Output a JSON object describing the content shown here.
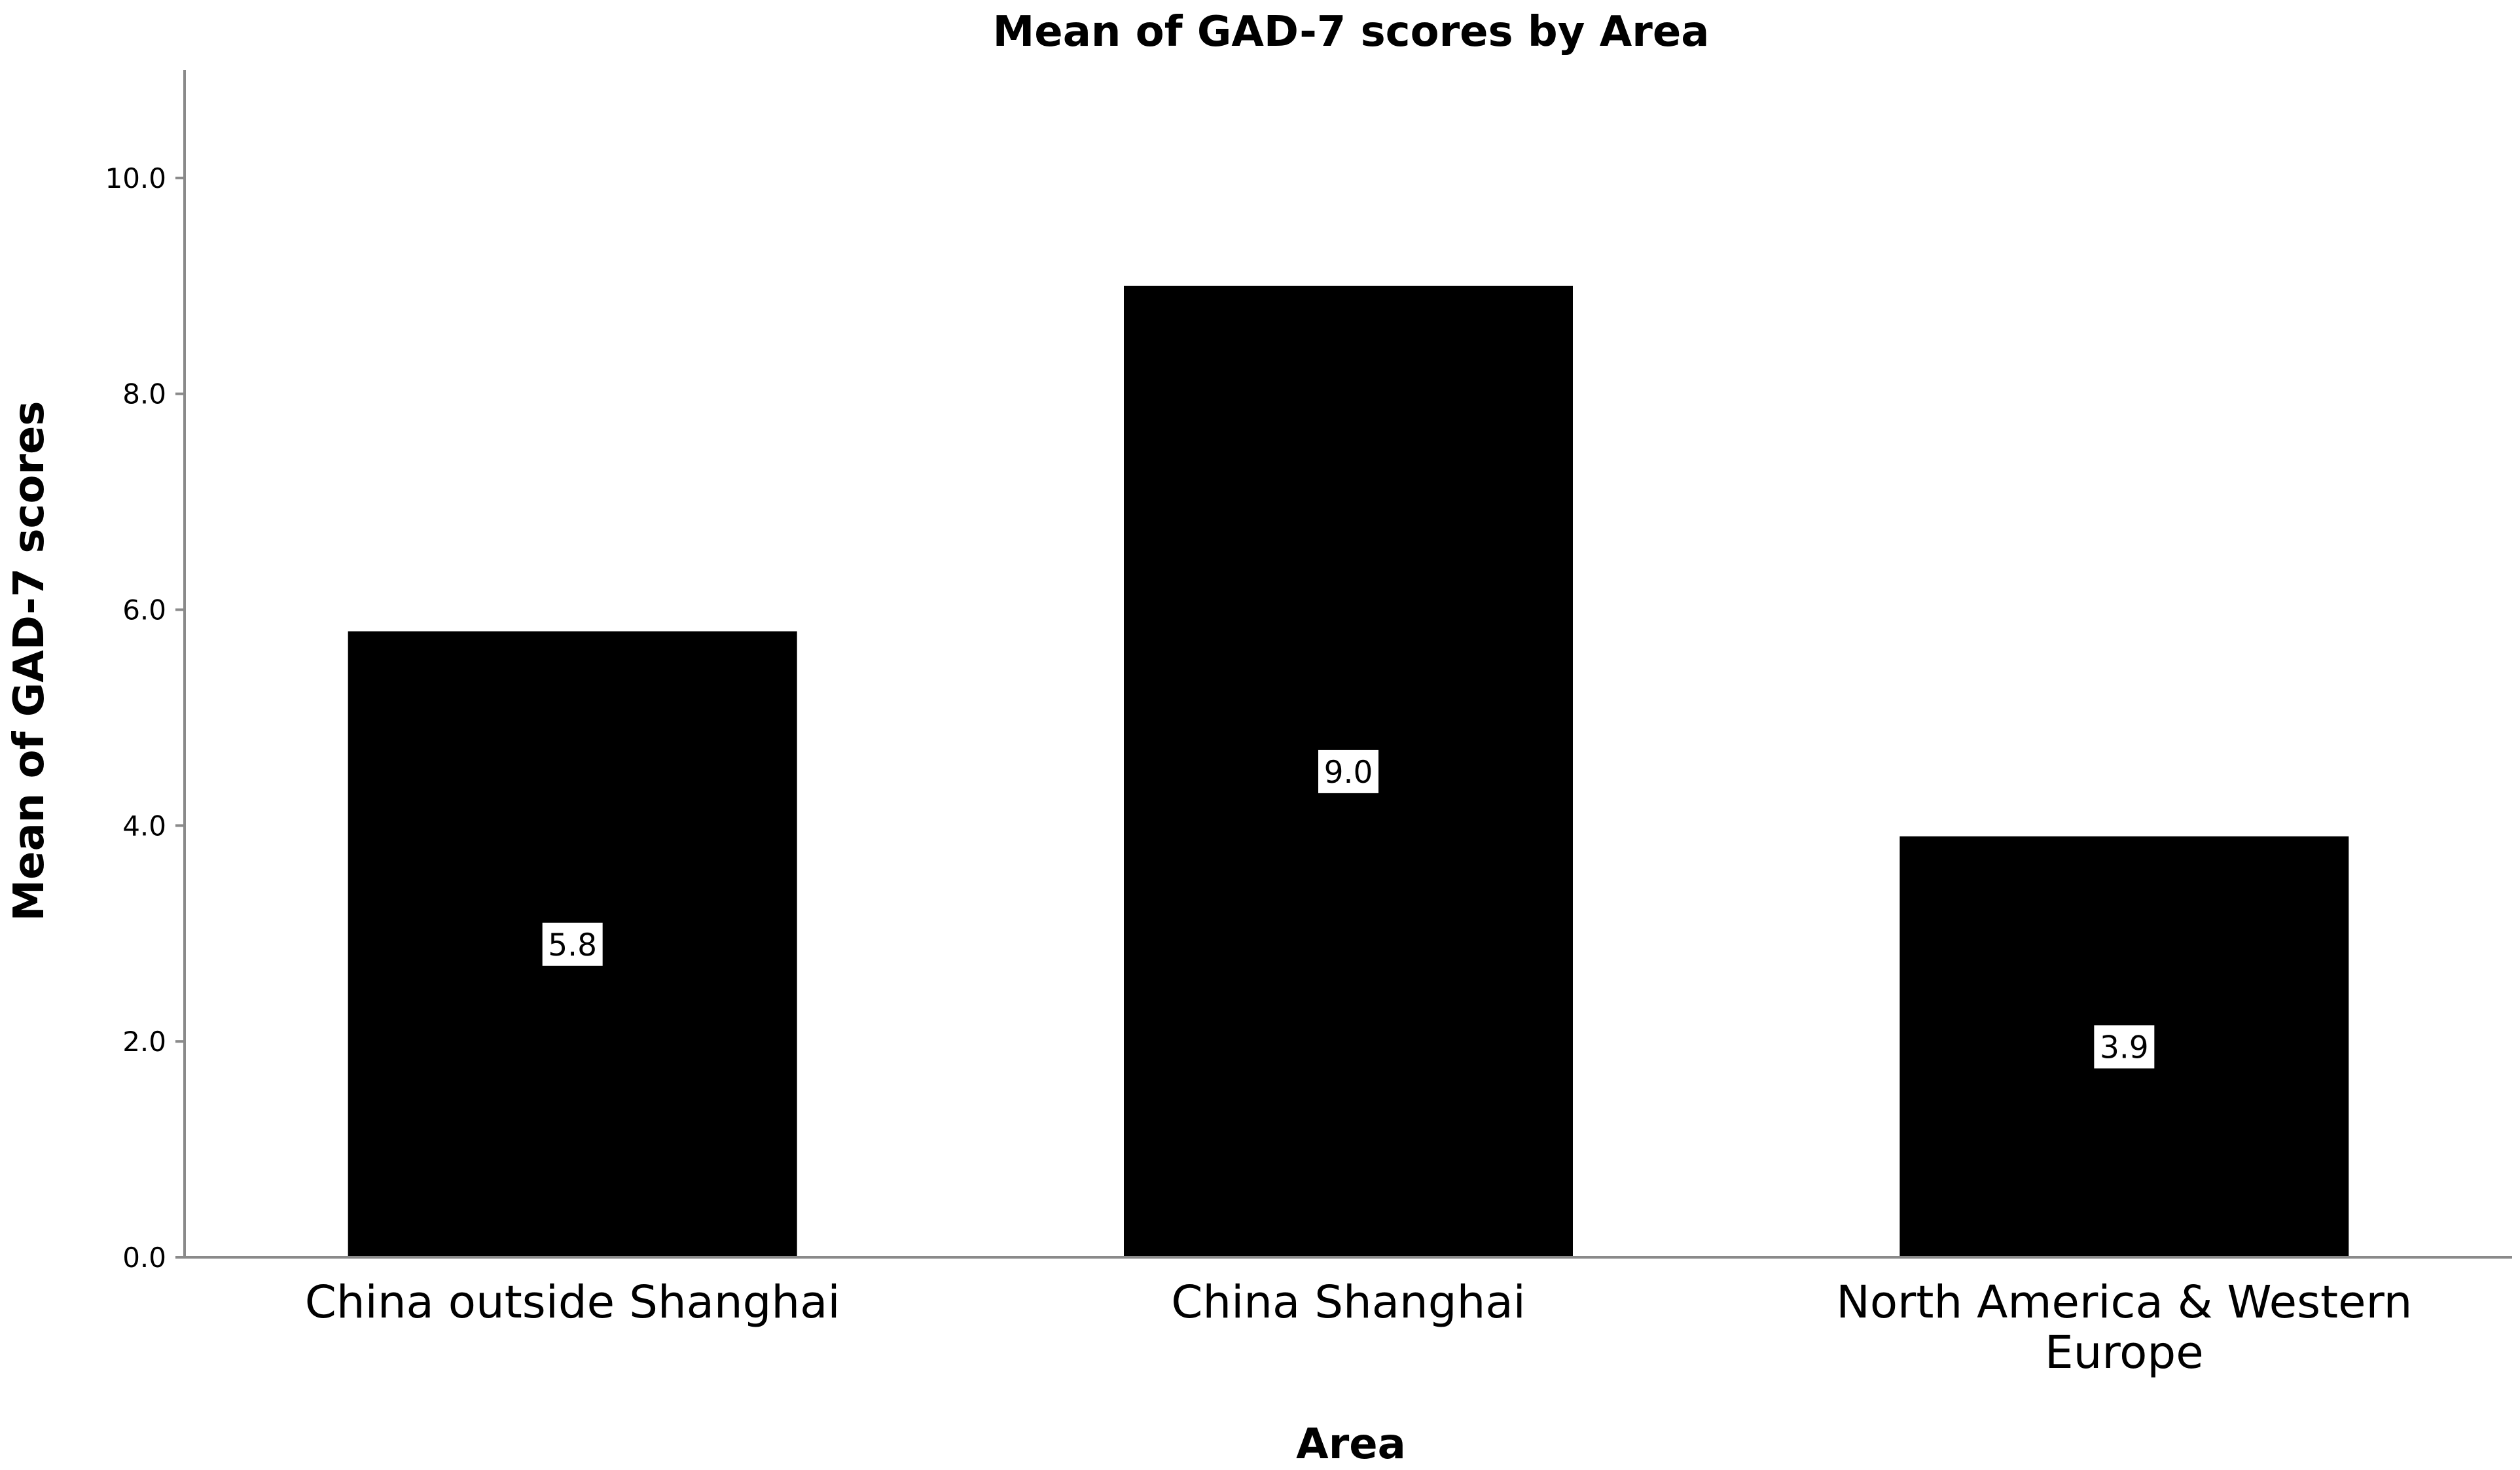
{
  "chart_data": {
    "type": "bar",
    "title": "Mean of GAD-7 scores by Area",
    "xlabel": "Area",
    "ylabel": "Mean of GAD-7 scores",
    "categories": [
      "China outside Shanghai",
      "China Shanghai",
      "North America & Western Europe"
    ],
    "values": [
      5.8,
      9.0,
      3.9
    ],
    "value_labels": [
      "5.8",
      "9.0",
      "3.9"
    ],
    "ylim": [
      0,
      11
    ],
    "yticks": [
      "0.0",
      "2.0",
      "4.0",
      "6.0",
      "8.0",
      "10.0"
    ],
    "grid": false,
    "legend": "none",
    "bar_color": "#000000",
    "label_box_color": "#ffffff"
  }
}
